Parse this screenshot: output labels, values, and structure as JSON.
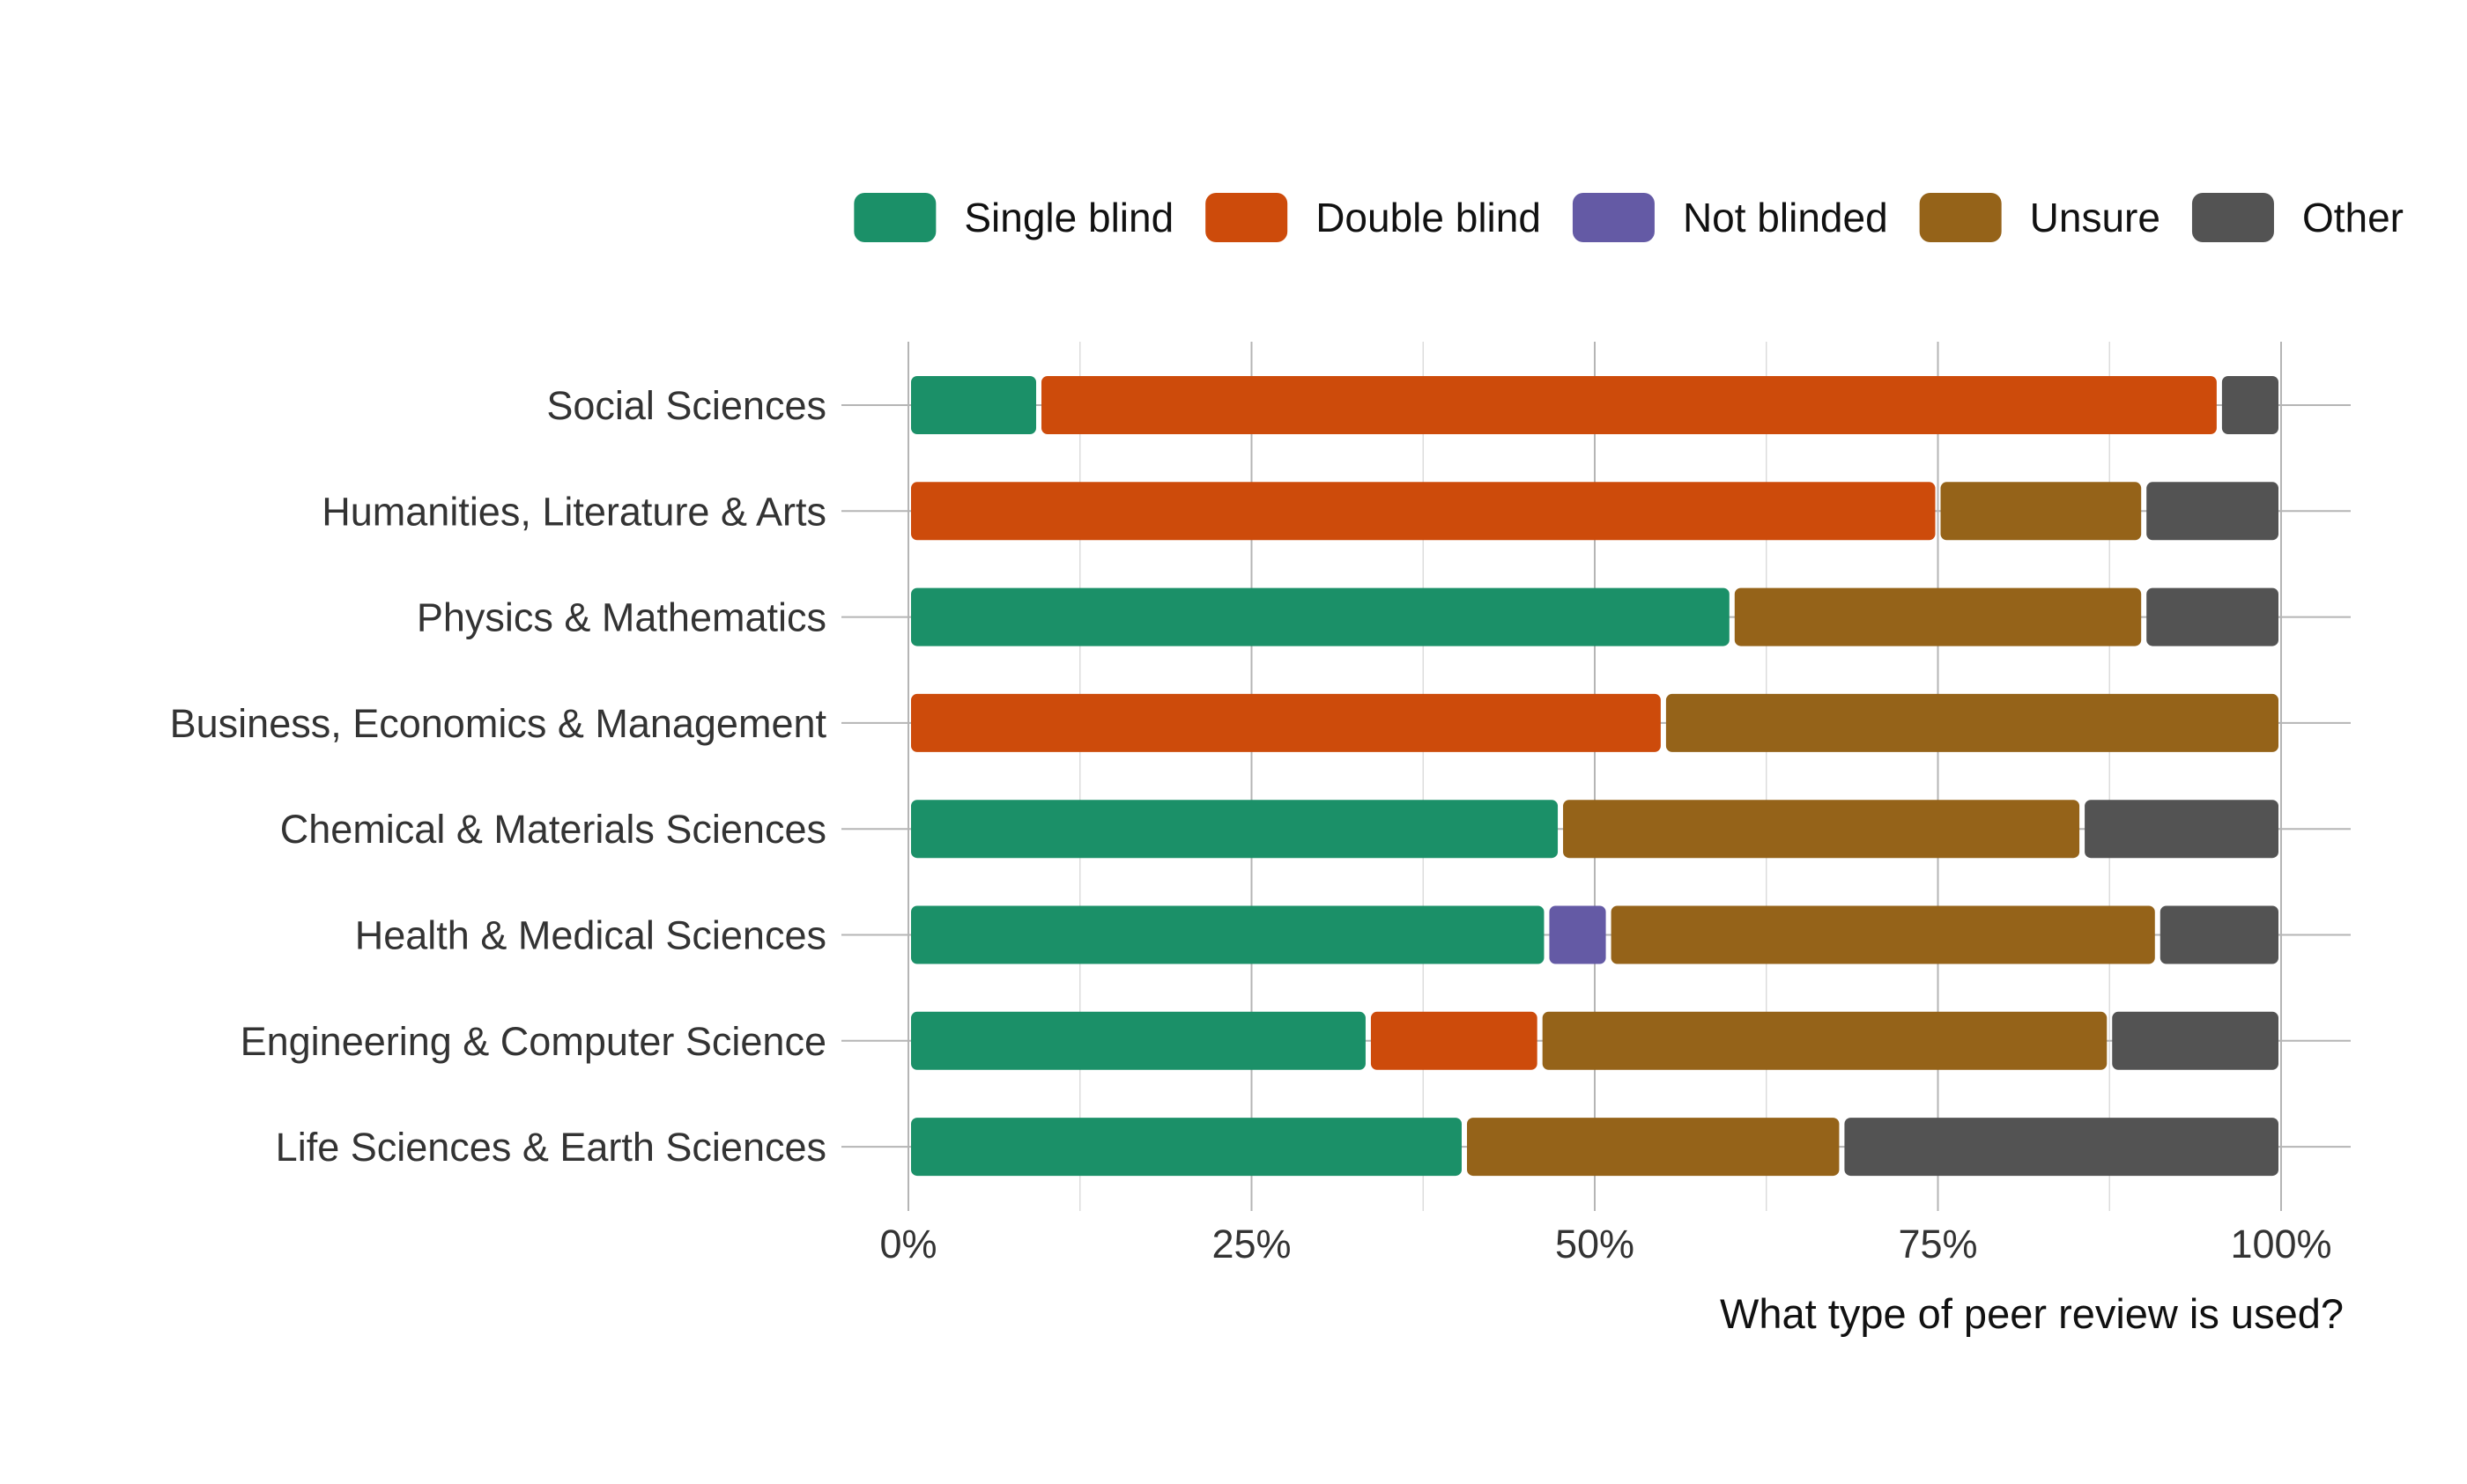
{
  "chart_data": {
    "type": "bar",
    "orientation": "horizontal",
    "stacked": true,
    "normalized": true,
    "categories": [
      "Social Sciences",
      "Humanities, Literature & Arts",
      "Physics & Mathematics",
      "Business, Economics & Management",
      "Chemical & Materials Sciences",
      "Health & Medical Sciences",
      "Engineering & Computer Science",
      "Life Sciences & Earth Sciences"
    ],
    "series": [
      {
        "name": "Single blind",
        "color": "#1b9068",
        "values": [
          9.5,
          0,
          60,
          0,
          47.5,
          46.5,
          33.5,
          40.5
        ]
      },
      {
        "name": "Double blind",
        "color": "#cd4b0b",
        "values": [
          86,
          75,
          0,
          55,
          0,
          0,
          12.5,
          0
        ]
      },
      {
        "name": "Not blinded",
        "color": "#645aa5",
        "values": [
          0,
          0,
          0,
          0,
          0,
          4.5,
          0,
          0
        ]
      },
      {
        "name": "Unsure",
        "color": "#956319",
        "values": [
          0,
          15,
          30,
          45,
          38,
          40,
          41.5,
          27.5
        ]
      },
      {
        "name": "Other",
        "color": "#535353",
        "values": [
          4.5,
          10,
          10,
          0,
          14.5,
          9,
          12.5,
          32
        ]
      }
    ],
    "xlim": [
      0,
      100
    ],
    "xticks": [
      "0%",
      "25%",
      "50%",
      "75%",
      "100%"
    ],
    "xlabel": "What type of peer review is used?",
    "ylabel": "",
    "title": "",
    "grid": true,
    "legend": "top-right"
  }
}
